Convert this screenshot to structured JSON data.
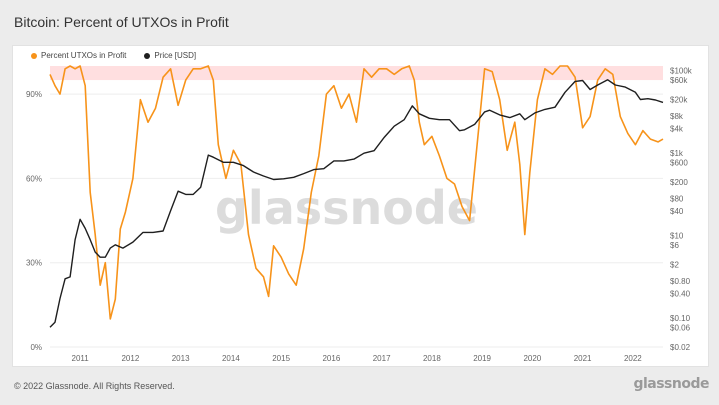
{
  "title": "Bitcoin: Percent of UTXOs in Profit",
  "footer": "© 2022 Glassnode. All Rights Reserved.",
  "logo": "glassnode",
  "watermark": "glassnode",
  "colors": {
    "utxo": "#f7931a",
    "price": "#1f1f1f",
    "band": "#ffc9cc",
    "grid": "#eeeeee"
  },
  "chart_data": {
    "type": "line",
    "title": "Bitcoin: Percent of UTXOs in Profit",
    "legend_position": "top-left",
    "x_ticks": [
      "2011",
      "2012",
      "2013",
      "2014",
      "2015",
      "2016",
      "2017",
      "2018",
      "2019",
      "2020",
      "2021",
      "2022"
    ],
    "x_range": [
      2010.75,
      2022.95
    ],
    "y_left": {
      "ticks": [
        "0%",
        "30%",
        "60%",
        "90%"
      ],
      "range": [
        0,
        100
      ],
      "band": [
        95,
        100
      ]
    },
    "y_right": {
      "scale": "log",
      "ticks": [
        "$100k",
        "$60k",
        "$20k",
        "$8k",
        "$4k",
        "$1k",
        "$600",
        "$200",
        "$80",
        "$40",
        "$10",
        "$6",
        "$2",
        "$0.80",
        "$0.40",
        "$0.10",
        "$0.06",
        "$0.02"
      ],
      "range": [
        0.02,
        130000
      ]
    },
    "series": [
      {
        "name": "Percent UTXOs in Profit",
        "axis": "left",
        "x": [
          2010.75,
          2010.85,
          2010.95,
          2011.05,
          2011.15,
          2011.25,
          2011.35,
          2011.45,
          2011.55,
          2011.65,
          2011.75,
          2011.85,
          2011.95,
          2012.05,
          2012.15,
          2012.25,
          2012.4,
          2012.55,
          2012.7,
          2012.85,
          2013.0,
          2013.15,
          2013.3,
          2013.45,
          2013.6,
          2013.75,
          2013.9,
          2014.0,
          2014.1,
          2014.25,
          2014.4,
          2014.55,
          2014.7,
          2014.85,
          2015.0,
          2015.1,
          2015.2,
          2015.35,
          2015.5,
          2015.65,
          2015.8,
          2015.95,
          2016.1,
          2016.25,
          2016.4,
          2016.55,
          2016.7,
          2016.85,
          2017.0,
          2017.15,
          2017.3,
          2017.45,
          2017.6,
          2017.75,
          2017.9,
          2018.0,
          2018.1,
          2018.2,
          2018.35,
          2018.5,
          2018.65,
          2018.8,
          2018.95,
          2019.1,
          2019.25,
          2019.4,
          2019.55,
          2019.7,
          2019.85,
          2020.0,
          2020.1,
          2020.2,
          2020.3,
          2020.45,
          2020.6,
          2020.75,
          2020.9,
          2021.05,
          2021.2,
          2021.35,
          2021.5,
          2021.65,
          2021.8,
          2021.95,
          2022.1,
          2022.25,
          2022.4,
          2022.55,
          2022.7,
          2022.85,
          2022.95
        ],
        "y": [
          97,
          93,
          90,
          99,
          100,
          99,
          100,
          93,
          55,
          40,
          22,
          30,
          10,
          17,
          42,
          48,
          60,
          88,
          80,
          85,
          96,
          99,
          86,
          95,
          99,
          99,
          100,
          95,
          72,
          60,
          70,
          65,
          40,
          28,
          25,
          18,
          36,
          32,
          26,
          22,
          35,
          55,
          68,
          90,
          93,
          85,
          90,
          80,
          99,
          96,
          99,
          99,
          97,
          99,
          100,
          95,
          80,
          72,
          75,
          68,
          60,
          58,
          50,
          45,
          72,
          99,
          98,
          88,
          70,
          80,
          65,
          40,
          62,
          88,
          99,
          97,
          100,
          100,
          96,
          78,
          82,
          95,
          99,
          97,
          82,
          76,
          72,
          77,
          74,
          73,
          74
        ]
      },
      {
        "name": "Price [USD]",
        "axis": "right",
        "x": [
          2010.75,
          2010.85,
          2010.95,
          2011.05,
          2011.15,
          2011.25,
          2011.35,
          2011.45,
          2011.55,
          2011.65,
          2011.75,
          2011.85,
          2011.95,
          2012.05,
          2012.2,
          2012.4,
          2012.6,
          2012.8,
          2013.0,
          2013.15,
          2013.3,
          2013.45,
          2013.6,
          2013.75,
          2013.9,
          2014.0,
          2014.2,
          2014.4,
          2014.6,
          2014.8,
          2015.0,
          2015.2,
          2015.4,
          2015.6,
          2015.8,
          2016.0,
          2016.2,
          2016.4,
          2016.6,
          2016.8,
          2017.0,
          2017.2,
          2017.4,
          2017.6,
          2017.8,
          2017.96,
          2018.1,
          2018.3,
          2018.5,
          2018.7,
          2018.9,
          2019.0,
          2019.2,
          2019.4,
          2019.5,
          2019.7,
          2019.9,
          2020.1,
          2020.2,
          2020.4,
          2020.6,
          2020.8,
          2021.0,
          2021.2,
          2021.35,
          2021.5,
          2021.65,
          2021.85,
          2022.0,
          2022.2,
          2022.4,
          2022.5,
          2022.65,
          2022.8,
          2022.95
        ],
        "y": [
          0.06,
          0.08,
          0.3,
          0.9,
          1,
          8,
          25,
          15,
          8,
          4,
          3,
          3,
          5,
          6,
          5,
          7,
          12,
          12,
          13,
          40,
          120,
          100,
          100,
          150,
          900,
          800,
          600,
          600,
          500,
          350,
          280,
          230,
          240,
          260,
          320,
          400,
          420,
          650,
          650,
          720,
          1000,
          1150,
          2400,
          4500,
          6500,
          14000,
          9000,
          7000,
          6500,
          6500,
          3500,
          3700,
          5000,
          10000,
          11000,
          8500,
          7300,
          9000,
          6500,
          9500,
          11500,
          13000,
          30000,
          55000,
          58000,
          35000,
          45000,
          60000,
          45000,
          40000,
          30000,
          20000,
          21000,
          19500,
          17000
        ]
      }
    ]
  }
}
